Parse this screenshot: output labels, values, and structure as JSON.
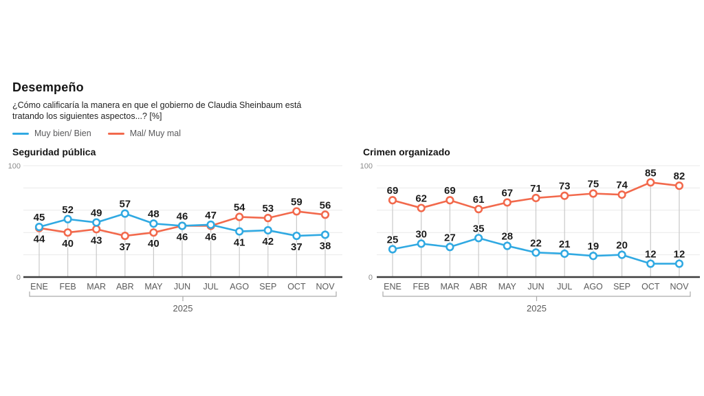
{
  "header": {
    "title": "Desempeño",
    "subtitle_line1": "¿Cómo calificaría la manera en que el gobierno de Claudia Sheinbaum está",
    "subtitle_line2": "tratando los siguientes aspectos...?  [%]",
    "legend": [
      {
        "label": "Muy bien/ Bien",
        "color": "#30A9E2"
      },
      {
        "label": "Mal/ Muy mal",
        "color": "#F2694C"
      }
    ]
  },
  "colors": {
    "series_blue": "#30A9E2",
    "series_orange": "#F2694C",
    "value_label": "#1c1c1c",
    "gridline": "#e9e9e9",
    "guide_line": "#c9c9c9",
    "axis_line": "#3c3c3c",
    "tick_text": "#5a5a5a",
    "y_axis_text": "#8a8a8a"
  },
  "chart_data": [
    {
      "type": "line",
      "title": "Seguridad pública",
      "categories": [
        "ENE",
        "FEB",
        "MAR",
        "ABR",
        "MAY",
        "JUN",
        "JUL",
        "AGO",
        "SEP",
        "OCT",
        "NOV"
      ],
      "x_group_label": "2025",
      "ylim": [
        0,
        100
      ],
      "yticks_labeled": [
        "0",
        "100"
      ],
      "gridline_step": 20,
      "grid": true,
      "legend_position": "top-shared",
      "label_placement": "split",
      "series": [
        {
          "name": "Muy bien/ Bien",
          "color": "#30A9E2",
          "values": [
            45,
            52,
            49,
            57,
            48,
            46,
            47,
            41,
            42,
            37,
            38
          ]
        },
        {
          "name": "Mal/ Muy mal",
          "color": "#F2694C",
          "values": [
            44,
            40,
            43,
            37,
            40,
            46,
            46,
            54,
            53,
            59,
            56
          ]
        }
      ]
    },
    {
      "type": "line",
      "title": "Crimen organizado",
      "categories": [
        "ENE",
        "FEB",
        "MAR",
        "ABR",
        "MAY",
        "JUN",
        "JUL",
        "AGO",
        "SEP",
        "OCT",
        "NOV"
      ],
      "x_group_label": "2025",
      "ylim": [
        0,
        100
      ],
      "yticks_labeled": [
        "0",
        "100"
      ],
      "gridline_step": 20,
      "grid": true,
      "legend_position": "top-shared",
      "label_placement": "all-above",
      "series": [
        {
          "name": "Muy bien/ Bien",
          "color": "#30A9E2",
          "values": [
            25,
            30,
            27,
            35,
            28,
            22,
            21,
            19,
            20,
            12,
            12
          ]
        },
        {
          "name": "Mal/ Muy mal",
          "color": "#F2694C",
          "values": [
            69,
            62,
            69,
            61,
            67,
            71,
            73,
            75,
            74,
            85,
            82
          ]
        }
      ]
    }
  ]
}
